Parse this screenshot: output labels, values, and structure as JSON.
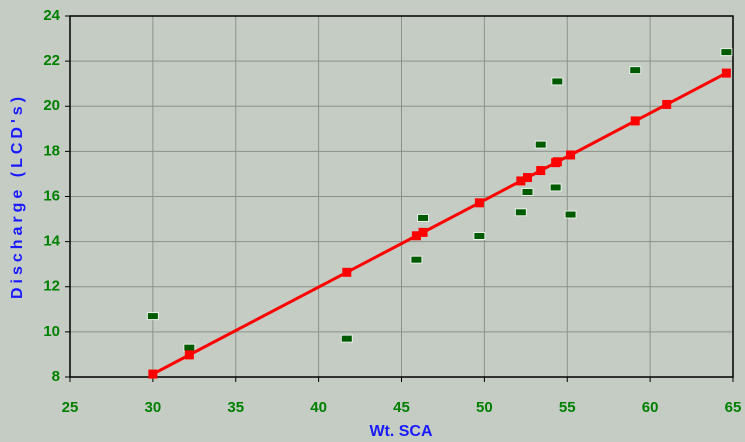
{
  "chart_data": {
    "type": "scatter",
    "x_label": "Wt. SCA",
    "y_label": "Discharge (LCD's)",
    "xlim": [
      25,
      65
    ],
    "ylim": [
      8,
      24
    ],
    "xticks": [
      25,
      30,
      35,
      40,
      45,
      50,
      55,
      60,
      65
    ],
    "yticks": [
      8,
      10,
      12,
      14,
      16,
      18,
      20,
      22,
      24
    ],
    "grid": true,
    "series": [
      {
        "color": "#005a00",
        "line": false,
        "x": [
          30.0,
          32.2,
          41.7,
          45.9,
          46.3,
          49.7,
          52.2,
          52.6,
          53.4,
          54.3,
          54.4,
          55.2,
          59.1,
          64.6
        ],
        "values": [
          10.7,
          9.3,
          9.7,
          13.2,
          15.05,
          14.25,
          15.3,
          16.2,
          18.3,
          16.4,
          21.1,
          15.2,
          21.6,
          22.4
        ]
      },
      {
        "color": "#ff0000",
        "line": true,
        "x": [
          30.0,
          32.2,
          41.7,
          45.9,
          46.3,
          49.7,
          52.2,
          52.6,
          53.4,
          54.3,
          54.4,
          55.2,
          59.1,
          61.0,
          64.6
        ],
        "values": [
          8.13,
          8.98,
          12.64,
          14.26,
          14.41,
          15.72,
          16.69,
          16.84,
          17.15,
          17.5,
          17.54,
          17.84,
          19.35,
          20.08,
          21.47
        ]
      }
    ]
  }
}
